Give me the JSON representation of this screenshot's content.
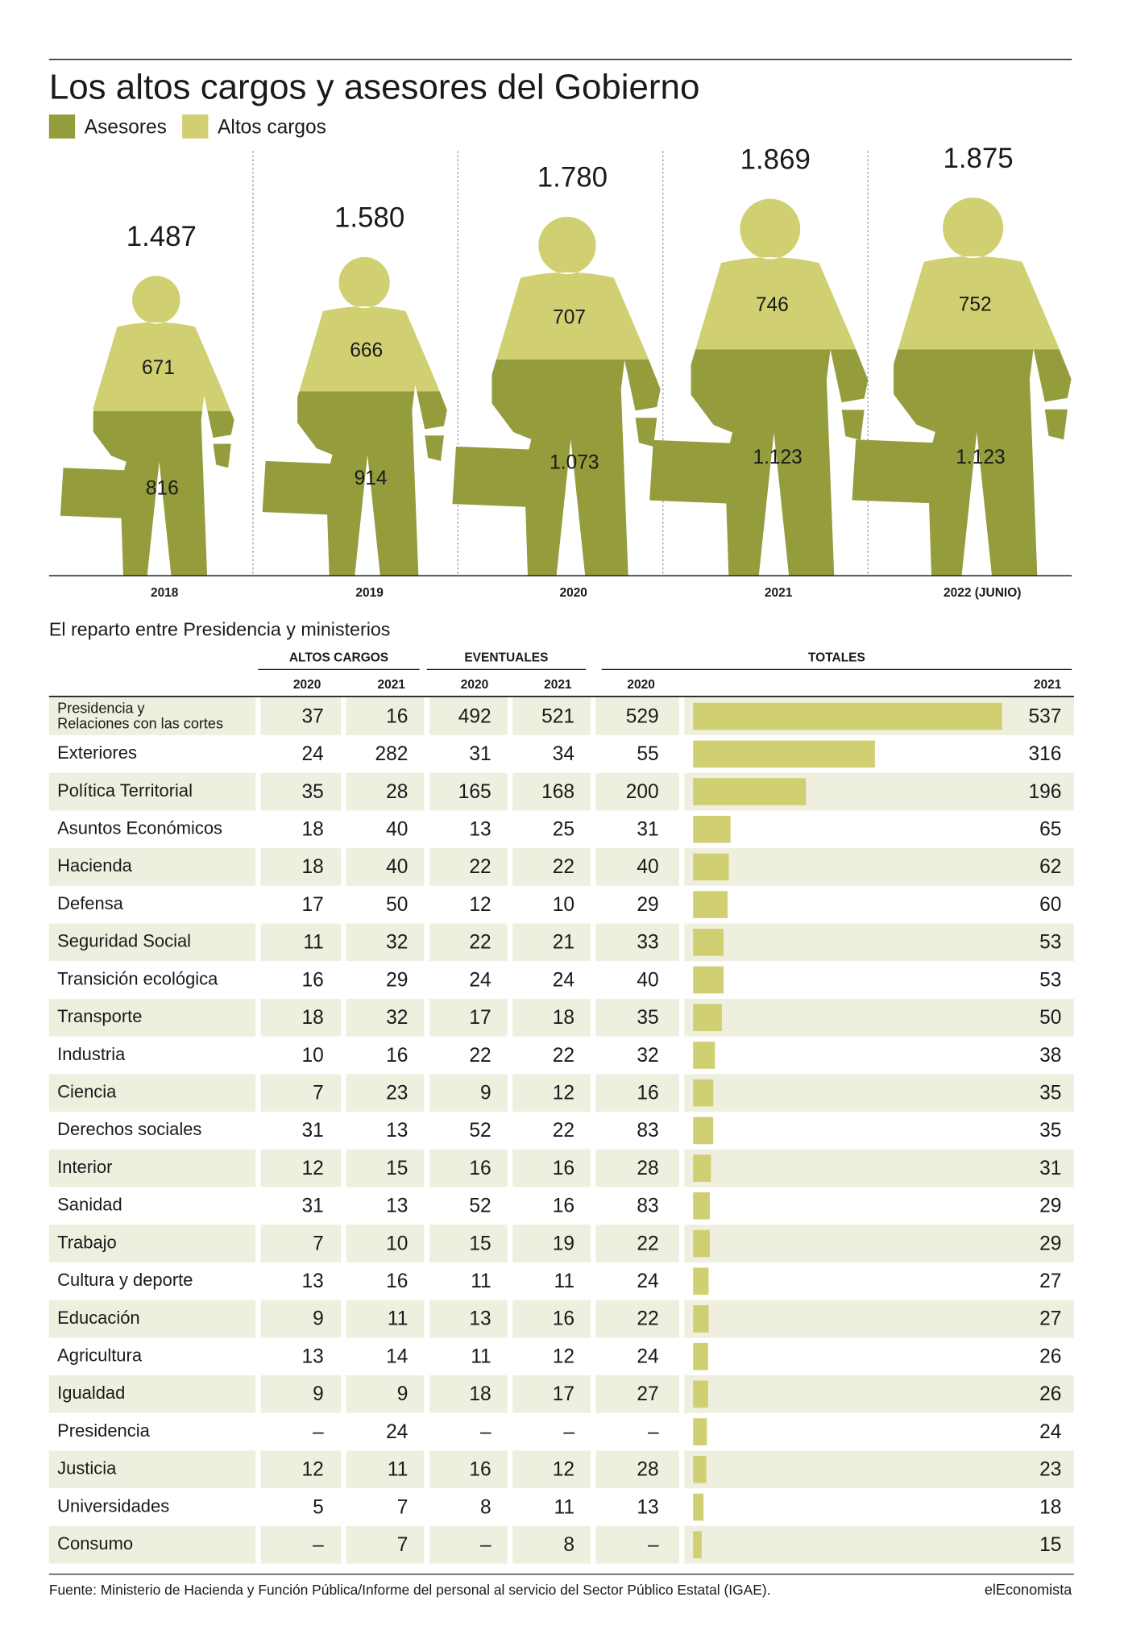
{
  "chart_data": [
    {
      "type": "pictogram",
      "title": "Los altos cargos y asesores del Gobierno",
      "categories": [
        "2018",
        "2019",
        "2020",
        "2021",
        "2022 (JUNIO)"
      ],
      "series": [
        {
          "name": "Asesores",
          "color": "#949c3c",
          "values": [
            816,
            914,
            1073,
            1123,
            1123
          ],
          "value_labels": [
            "816",
            "914",
            "1.073",
            "1.123",
            "1.123"
          ]
        },
        {
          "name": "Altos cargos",
          "color": "#d0cf72",
          "values": [
            671,
            666,
            707,
            746,
            752
          ]
        }
      ],
      "totals": {
        "values": [
          1487,
          1580,
          1780,
          1869,
          1875
        ],
        "value_labels": [
          "1.487",
          "1.580",
          "1.780",
          "1.869",
          "1.875"
        ]
      }
    },
    {
      "type": "table-bar",
      "title": "El reparto entre Presidencia y ministerios",
      "color": "#d0cf72",
      "groups": [
        "ALTOS CARGOS",
        "EVENTUALES",
        "TOTALES"
      ],
      "columns": [
        "2020",
        "2021",
        "2020",
        "2021",
        "2020",
        "2021"
      ],
      "rows": [
        {
          "name": [
            "Presidencia y",
            "Relaciones con las cortes"
          ],
          "values": [
            37,
            16,
            492,
            521,
            529,
            537
          ]
        },
        {
          "name": "Exteriores",
          "values": [
            24,
            282,
            31,
            34,
            55,
            316
          ]
        },
        {
          "name": "Política Territorial",
          "values": [
            35,
            28,
            165,
            168,
            200,
            196
          ]
        },
        {
          "name": "Asuntos Económicos",
          "values": [
            18,
            40,
            13,
            25,
            31,
            65
          ]
        },
        {
          "name": "Hacienda",
          "values": [
            18,
            40,
            22,
            22,
            40,
            62
          ]
        },
        {
          "name": "Defensa",
          "values": [
            17,
            50,
            12,
            10,
            29,
            60
          ]
        },
        {
          "name": "Seguridad Social",
          "values": [
            11,
            32,
            22,
            21,
            33,
            53
          ]
        },
        {
          "name": "Transición ecológica",
          "values": [
            16,
            29,
            24,
            24,
            40,
            53
          ]
        },
        {
          "name": "Transporte",
          "values": [
            18,
            32,
            17,
            18,
            35,
            50
          ]
        },
        {
          "name": "Industria",
          "values": [
            10,
            16,
            22,
            22,
            32,
            38
          ]
        },
        {
          "name": "Ciencia",
          "values": [
            7,
            23,
            9,
            12,
            16,
            35
          ]
        },
        {
          "name": "Derechos sociales",
          "values": [
            31,
            13,
            52,
            22,
            83,
            35
          ]
        },
        {
          "name": "Interior",
          "values": [
            12,
            15,
            16,
            16,
            28,
            31
          ]
        },
        {
          "name": "Sanidad",
          "values": [
            31,
            13,
            52,
            16,
            83,
            29
          ]
        },
        {
          "name": "Trabajo",
          "values": [
            7,
            10,
            15,
            19,
            22,
            29
          ]
        },
        {
          "name": "Cultura y deporte",
          "values": [
            13,
            16,
            11,
            11,
            24,
            27
          ]
        },
        {
          "name": "Educación",
          "values": [
            9,
            11,
            13,
            16,
            22,
            27
          ]
        },
        {
          "name": "Agricultura",
          "values": [
            13,
            14,
            11,
            12,
            24,
            26
          ]
        },
        {
          "name": "Igualdad",
          "values": [
            9,
            9,
            18,
            17,
            27,
            26
          ]
        },
        {
          "name": "Presidencia",
          "values": [
            "–",
            24,
            "–",
            "–",
            "–",
            24
          ]
        },
        {
          "name": "Justicia",
          "values": [
            12,
            11,
            16,
            12,
            28,
            23
          ]
        },
        {
          "name": "Universidades",
          "values": [
            5,
            7,
            8,
            11,
            13,
            18
          ]
        },
        {
          "name": "Consumo",
          "values": [
            "–",
            7,
            "–",
            8,
            "–",
            15
          ]
        }
      ]
    }
  ],
  "footer": {
    "source": "Fuente: Ministerio de Hacienda y Función Pública/Informe del personal al servicio del Sector Público Estatal (IGAE).",
    "brand": "elEconomista"
  }
}
